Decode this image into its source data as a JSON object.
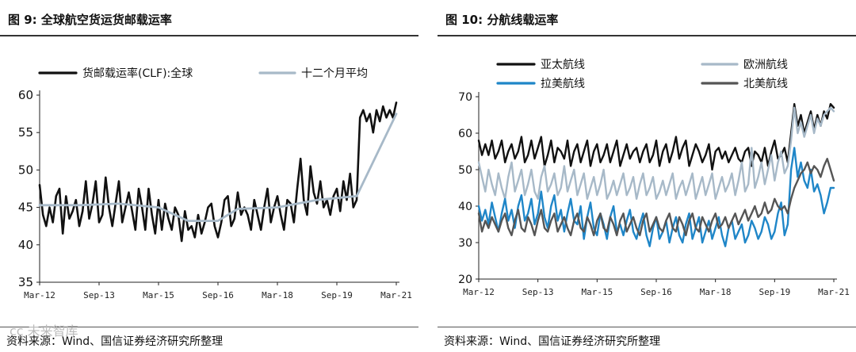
{
  "left": {
    "title": "图 9:  全球航空货运货邮载运率",
    "source": "资料来源：Wind、国信证券经济研究所整理",
    "watermark": "ᴄᴄ 未来智库"
  },
  "right": {
    "title": "图 10:  分航线载运率",
    "source": "资料来源：Wind、国信证券经济研究所整理"
  },
  "colors": {
    "black": "#111111",
    "light": "#a7b9c8",
    "blue": "#1f86c8",
    "dark": "#555555"
  },
  "chart_data": [
    {
      "type": "line",
      "title": "",
      "ylim": [
        35,
        60
      ],
      "yticks": [
        35,
        40,
        45,
        50,
        55,
        60
      ],
      "xticks": [
        "Mar-12",
        "Sep-13",
        "Mar-15",
        "Sep-16",
        "Mar-18",
        "Sep-19",
        "Mar-21"
      ],
      "xrange": [
        0,
        108
      ],
      "legend_position": "top",
      "series": [
        {
          "name": "货邮载运率(CLF):全球",
          "color": "#111111",
          "values": [
            48,
            44,
            42.5,
            45,
            43,
            46.5,
            47.5,
            41.5,
            46.5,
            43.5,
            44.5,
            46,
            42.5,
            44.5,
            48.5,
            43.5,
            45.5,
            48.5,
            43,
            44,
            49,
            45,
            42.5,
            45.5,
            48.5,
            43,
            45,
            47,
            44.5,
            42,
            47.5,
            45,
            42,
            47.5,
            44,
            41.5,
            46,
            42,
            45.5,
            43.5,
            42,
            45,
            44,
            40.5,
            44.5,
            42,
            42.5,
            41,
            44,
            41.5,
            43,
            45,
            45.5,
            42.5,
            41,
            43,
            46,
            46.5,
            42.5,
            43.5,
            47,
            44,
            45,
            44,
            42,
            46,
            44,
            42,
            45,
            47.5,
            43,
            45,
            46.5,
            44,
            42,
            46,
            45.5,
            43,
            47.5,
            51.5,
            46,
            44,
            50.5,
            47,
            45.5,
            48.5,
            45,
            46,
            44,
            46.5,
            47.5,
            44.5,
            48.5,
            46,
            49.5,
            45,
            46,
            57,
            58,
            56.5,
            57.5,
            55,
            58,
            56.5,
            58.5,
            57,
            58,
            57,
            59
          ]
        },
        {
          "name": "十二个月平均",
          "color": "#a7b9c8",
          "points": [
            [
              0,
              45.3
            ],
            [
              12,
              45.3
            ],
            [
              24,
              45.5
            ],
            [
              36,
              45.0
            ],
            [
              45,
              43.2
            ],
            [
              54,
              43.2
            ],
            [
              60,
              44.8
            ],
            [
              72,
              45.0
            ],
            [
              84,
              46.0
            ],
            [
              96,
              46.5
            ],
            [
              108,
              57.5
            ]
          ]
        }
      ]
    },
    {
      "type": "line",
      "title": "",
      "ylim": [
        20,
        70
      ],
      "yticks": [
        20,
        30,
        40,
        50,
        60,
        70
      ],
      "xticks": [
        "Mar-12",
        "Sep-13",
        "Mar-15",
        "Sep-16",
        "Mar-18",
        "Sep-19",
        "Mar-21"
      ],
      "xrange": [
        0,
        108
      ],
      "legend_position": "top",
      "series": [
        {
          "name": "亚太航线",
          "color": "#111111",
          "values": [
            58,
            54,
            57,
            54,
            58,
            53,
            55,
            58,
            52,
            55,
            57,
            53,
            55,
            59,
            52,
            54,
            58,
            53,
            56,
            59,
            51,
            54,
            58,
            52,
            56,
            55,
            53,
            58,
            51,
            55,
            57,
            52,
            55,
            58,
            51,
            55,
            57,
            52,
            54,
            57,
            52,
            55,
            58,
            51,
            54,
            57,
            53,
            55,
            56,
            52,
            55,
            57,
            52,
            54,
            58,
            51,
            55,
            57,
            52,
            55,
            59,
            53,
            56,
            58,
            51,
            54,
            57,
            55,
            52,
            54,
            57,
            50,
            55,
            56,
            53,
            55,
            52,
            54,
            56,
            53,
            52,
            55,
            56,
            51,
            55,
            54,
            52,
            56,
            51,
            55,
            58,
            53,
            54,
            56,
            52,
            60,
            68,
            62,
            65,
            60,
            63,
            66,
            61,
            65,
            62,
            66,
            64,
            68,
            67
          ]
        },
        {
          "name": "欧洲航线",
          "color": "#a7b9c8",
          "values": [
            52,
            48,
            44,
            50,
            46,
            43,
            49,
            45,
            42,
            48,
            52,
            44,
            47,
            50,
            43,
            46,
            50,
            44,
            42,
            48,
            51,
            44,
            46,
            49,
            43,
            45,
            51,
            44,
            47,
            50,
            43,
            46,
            49,
            42,
            45,
            48,
            43,
            46,
            50,
            42,
            44,
            47,
            43,
            46,
            49,
            43,
            45,
            48,
            42,
            46,
            49,
            43,
            45,
            48,
            42,
            44,
            47,
            43,
            46,
            49,
            42,
            45,
            47,
            43,
            46,
            49,
            42,
            45,
            48,
            43,
            46,
            49,
            42,
            45,
            48,
            44,
            46,
            49,
            43,
            47,
            52,
            44,
            46,
            56,
            45,
            48,
            52,
            46,
            50,
            54,
            47,
            52,
            55,
            49,
            51,
            58,
            67,
            60,
            63,
            59,
            62,
            65,
            60,
            64,
            62,
            65,
            66,
            67,
            66
          ]
        },
        {
          "name": "拉美航线",
          "color": "#1f86c8",
          "values": [
            40,
            36,
            39,
            35,
            41,
            37,
            33,
            38,
            42,
            36,
            39,
            34,
            40,
            43,
            36,
            38,
            42,
            35,
            38,
            44,
            37,
            34,
            40,
            43,
            36,
            39,
            33,
            38,
            42,
            36,
            35,
            40,
            31,
            37,
            41,
            34,
            32,
            38,
            35,
            31,
            37,
            40,
            33,
            35,
            32,
            36,
            39,
            33,
            31,
            35,
            38,
            32,
            29,
            34,
            37,
            31,
            33,
            36,
            30,
            34,
            37,
            32,
            30,
            35,
            38,
            31,
            34,
            37,
            30,
            33,
            36,
            31,
            34,
            37,
            32,
            29,
            34,
            36,
            31,
            33,
            35,
            30,
            32,
            36,
            34,
            31,
            33,
            37,
            35,
            31,
            33,
            38,
            41,
            32,
            35,
            50,
            56,
            48,
            52,
            47,
            45,
            50,
            44,
            46,
            43,
            38,
            41,
            45,
            45
          ]
        },
        {
          "name": "北美航线",
          "color": "#555555",
          "values": [
            38,
            33,
            36,
            34,
            37,
            35,
            33,
            36,
            38,
            34,
            32,
            36,
            39,
            34,
            33,
            37,
            35,
            32,
            36,
            39,
            34,
            33,
            36,
            38,
            33,
            35,
            37,
            34,
            32,
            36,
            38,
            34,
            33,
            37,
            35,
            32,
            36,
            38,
            34,
            33,
            37,
            35,
            32,
            36,
            38,
            33,
            35,
            37,
            34,
            32,
            36,
            38,
            33,
            35,
            37,
            34,
            33,
            36,
            38,
            34,
            33,
            37,
            35,
            32,
            36,
            38,
            34,
            33,
            37,
            35,
            33,
            36,
            38,
            34,
            35,
            37,
            34,
            36,
            38,
            35,
            37,
            39,
            36,
            38,
            40,
            37,
            38,
            41,
            38,
            39,
            42,
            40,
            39,
            40,
            38,
            42,
            45,
            47,
            49,
            50,
            52,
            49,
            51,
            50,
            48,
            51,
            53,
            50,
            47
          ]
        }
      ]
    }
  ]
}
